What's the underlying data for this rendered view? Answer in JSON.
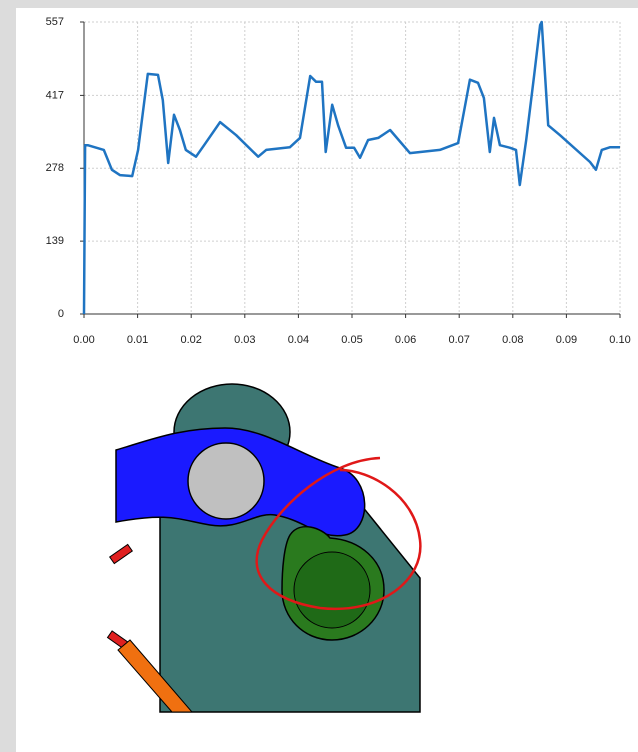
{
  "chart_data": {
    "type": "line",
    "color": "#1f74c2",
    "grid": true,
    "x": [
      0,
      0.0002,
      0.0007,
      0.0037,
      0.0052,
      0.0067,
      0.009,
      0.0101,
      0.0119,
      0.0138,
      0.0147,
      0.0157,
      0.0168,
      0.0179,
      0.019,
      0.0209,
      0.0224,
      0.0254,
      0.0284,
      0.0325,
      0.034,
      0.0384,
      0.0403,
      0.0422,
      0.0433,
      0.0444,
      0.0451,
      0.0463,
      0.0474,
      0.0489,
      0.0504,
      0.0515,
      0.053,
      0.0549,
      0.0571,
      0.0608,
      0.0664,
      0.0698,
      0.072,
      0.0735,
      0.0746,
      0.0757,
      0.0765,
      0.0776,
      0.0795,
      0.0806,
      0.0813,
      0.0825,
      0.084,
      0.0851,
      0.0854,
      0.0866,
      0.0888,
      0.0944,
      0.0955,
      0.0966,
      0.0981,
      0.1
    ],
    "values": [
      0,
      322,
      322,
      313,
      275,
      265,
      263,
      313,
      458,
      456,
      408,
      288,
      380,
      351,
      313,
      300,
      322,
      366,
      341,
      300,
      313,
      318,
      336,
      454,
      443,
      443,
      309,
      399,
      360,
      317,
      317,
      298,
      332,
      336,
      351,
      307,
      313,
      326,
      447,
      441,
      412,
      309,
      374,
      322,
      317,
      313,
      246,
      332,
      456,
      551,
      557,
      360,
      341,
      290,
      275,
      313,
      318,
      318
    ],
    "xlim": [
      0,
      0.1
    ],
    "xticks": [
      {
        "value": 0,
        "label": "0.00"
      },
      {
        "value": 0.01,
        "label": "0.01"
      },
      {
        "value": 0.02,
        "label": "0.02"
      },
      {
        "value": 0.03,
        "label": "0.03"
      },
      {
        "value": 0.04,
        "label": "0.04"
      },
      {
        "value": 0.05,
        "label": "0.05"
      },
      {
        "value": 0.06,
        "label": "0.06"
      },
      {
        "value": 0.07,
        "label": "0.07"
      },
      {
        "value": 0.08,
        "label": "0.08"
      },
      {
        "value": 0.09,
        "label": "0.09"
      },
      {
        "value": 0.1,
        "label": "0.10"
      }
    ],
    "ylim": [
      0,
      557
    ],
    "yticks": [
      0,
      139,
      278,
      417,
      557
    ]
  }
}
